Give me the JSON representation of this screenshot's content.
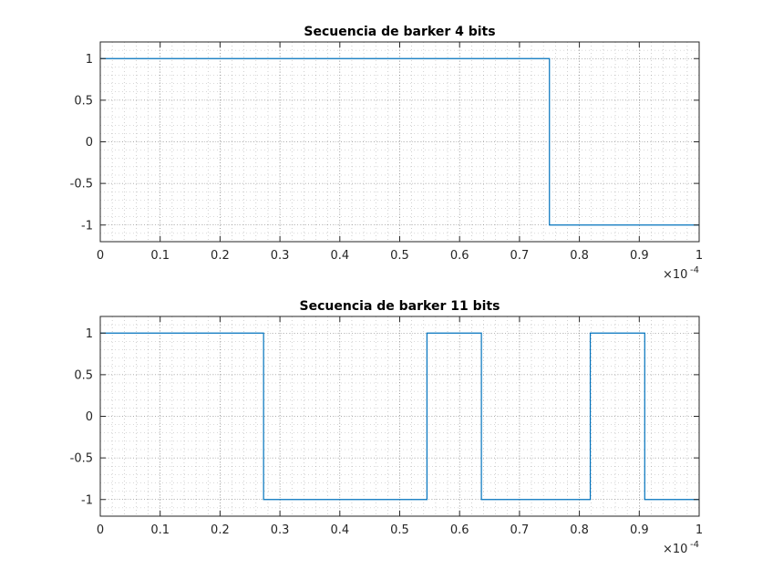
{
  "chart_data": [
    {
      "type": "line",
      "title": "Secuencia de barker 4 bits",
      "xlabel": "",
      "ylabel": "",
      "x_exponent_label": "×10",
      "x_exponent_power": "-4",
      "x_scale_note": "x axis values are multiplied by 1e-4",
      "xlim": [
        0,
        1
      ],
      "ylim": [
        -1.2,
        1.2
      ],
      "xticks": [
        0,
        0.1,
        0.2,
        0.3,
        0.4,
        0.5,
        0.6,
        0.7,
        0.8,
        0.9,
        1
      ],
      "xtick_labels": [
        "0",
        "0.1",
        "0.2",
        "0.3",
        "0.4",
        "0.5",
        "0.6",
        "0.7",
        "0.8",
        "0.9",
        "1"
      ],
      "yticks": [
        1,
        0.5,
        0,
        -0.5,
        -1
      ],
      "ytick_labels": [
        "1",
        "0.5",
        "0",
        "-0.5",
        "-1"
      ],
      "grid": true,
      "minor_grid": true,
      "color": "#0072BD",
      "series": [
        {
          "x": [
            0,
            0.75,
            0.75,
            1
          ],
          "y": [
            1,
            1,
            -1,
            -1
          ]
        }
      ]
    },
    {
      "type": "line",
      "title": "Secuencia de barker 11 bits",
      "xlabel": "",
      "ylabel": "",
      "x_exponent_label": "×10",
      "x_exponent_power": "-4",
      "x_scale_note": "x axis values are multiplied by 1e-4",
      "xlim": [
        0,
        1
      ],
      "ylim": [
        -1.2,
        1.2
      ],
      "xticks": [
        0,
        0.1,
        0.2,
        0.3,
        0.4,
        0.5,
        0.6,
        0.7,
        0.8,
        0.9,
        1
      ],
      "xtick_labels": [
        "0",
        "0.1",
        "0.2",
        "0.3",
        "0.4",
        "0.5",
        "0.6",
        "0.7",
        "0.8",
        "0.9",
        "1"
      ],
      "yticks": [
        1,
        0.5,
        0,
        -0.5,
        -1
      ],
      "ytick_labels": [
        "1",
        "0.5",
        "0",
        "-0.5",
        "-1"
      ],
      "grid": true,
      "minor_grid": true,
      "color": "#0072BD",
      "series": [
        {
          "x": [
            0,
            0.2727,
            0.2727,
            0.5455,
            0.5455,
            0.6364,
            0.6364,
            0.8182,
            0.8182,
            0.9091,
            0.9091,
            1
          ],
          "y": [
            1,
            1,
            -1,
            -1,
            1,
            1,
            -1,
            -1,
            1,
            1,
            -1,
            -1
          ]
        }
      ]
    }
  ]
}
